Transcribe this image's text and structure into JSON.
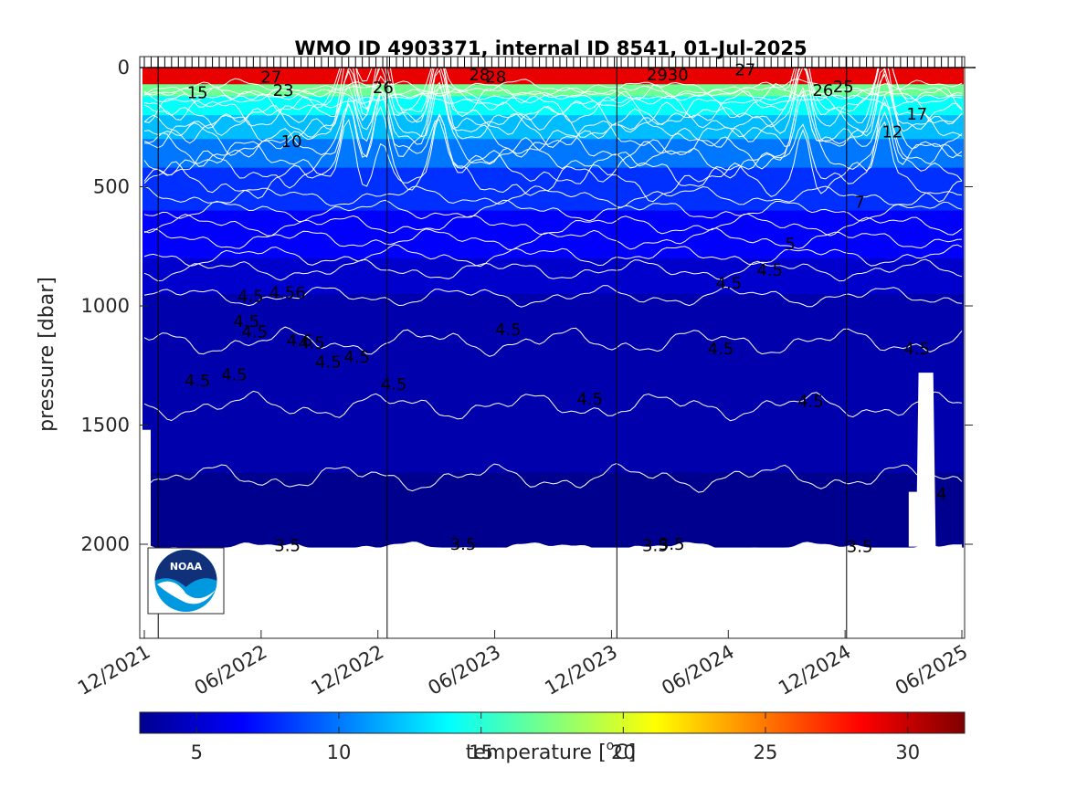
{
  "chart_data": {
    "type": "heatmap",
    "title": "WMO ID 4903371, internal ID 8541, 01-Jul-2025",
    "ylabel": "pressure [dbar]",
    "y_reversed": true,
    "ylim": [
      0,
      2400
    ],
    "y_ticks": [
      0,
      500,
      1000,
      1500,
      2000
    ],
    "x_ticks": [
      "12/2021",
      "06/2022",
      "12/2022",
      "06/2023",
      "12/2023",
      "06/2024",
      "12/2024",
      "06/2025"
    ],
    "colorbar": {
      "label_prefix": "temperature [",
      "label_unit_sup": "o",
      "label_unit": "C]",
      "range": [
        3,
        32
      ],
      "ticks": [
        5,
        10,
        15,
        20,
        25,
        30
      ],
      "colormap": "jet"
    },
    "temperature_layers": [
      {
        "top_dbar": 0,
        "bottom_dbar": 70,
        "temp": 29
      },
      {
        "top_dbar": 70,
        "bottom_dbar": 120,
        "temp": 17
      },
      {
        "top_dbar": 120,
        "bottom_dbar": 200,
        "temp": 14
      },
      {
        "top_dbar": 200,
        "bottom_dbar": 300,
        "temp": 12
      },
      {
        "top_dbar": 300,
        "bottom_dbar": 420,
        "temp": 10
      },
      {
        "top_dbar": 420,
        "bottom_dbar": 600,
        "temp": 8
      },
      {
        "top_dbar": 600,
        "bottom_dbar": 800,
        "temp": 6.5
      },
      {
        "top_dbar": 800,
        "bottom_dbar": 950,
        "temp": 5.2
      },
      {
        "top_dbar": 950,
        "bottom_dbar": 1700,
        "temp": 4.3
      },
      {
        "top_dbar": 1700,
        "bottom_dbar": 2010,
        "temp": 3.4
      }
    ],
    "contour_labels": [
      {
        "text": "27",
        "t": 0.155,
        "p": 40
      },
      {
        "text": "15",
        "t": 0.065,
        "p": 105
      },
      {
        "text": "23",
        "t": 0.17,
        "p": 95
      },
      {
        "text": "26",
        "t": 0.292,
        "p": 85
      },
      {
        "text": "28",
        "t": 0.41,
        "p": 30
      },
      {
        "text": "28",
        "t": 0.43,
        "p": 40
      },
      {
        "text": "2930",
        "t": 0.64,
        "p": 30
      },
      {
        "text": "27",
        "t": 0.735,
        "p": 10
      },
      {
        "text": "26",
        "t": 0.83,
        "p": 95
      },
      {
        "text": "25",
        "t": 0.855,
        "p": 80
      },
      {
        "text": "17",
        "t": 0.945,
        "p": 195
      },
      {
        "text": "12",
        "t": 0.915,
        "p": 270
      },
      {
        "text": "10",
        "t": 0.18,
        "p": 310
      },
      {
        "text": "7",
        "t": 0.875,
        "p": 565
      },
      {
        "text": "5",
        "t": 0.79,
        "p": 740
      },
      {
        "text": "4.5",
        "t": 0.765,
        "p": 850
      },
      {
        "text": "4.5",
        "t": 0.715,
        "p": 905
      },
      {
        "text": "4.5",
        "t": 0.13,
        "p": 960
      },
      {
        "text": "4.56",
        "t": 0.175,
        "p": 945
      },
      {
        "text": "4.5",
        "t": 0.125,
        "p": 1065
      },
      {
        "text": "4.5",
        "t": 0.135,
        "p": 1110
      },
      {
        "text": "4.6",
        "t": 0.19,
        "p": 1145
      },
      {
        "text": "4.5",
        "t": 0.205,
        "p": 1155
      },
      {
        "text": "4.5",
        "t": 0.225,
        "p": 1235
      },
      {
        "text": "4.5",
        "t": 0.26,
        "p": 1215
      },
      {
        "text": "4.5",
        "t": 0.11,
        "p": 1290
      },
      {
        "text": "4.5",
        "t": 0.065,
        "p": 1315
      },
      {
        "text": "4.5",
        "t": 0.305,
        "p": 1330
      },
      {
        "text": "4.5",
        "t": 0.445,
        "p": 1100
      },
      {
        "text": "4.5",
        "t": 0.545,
        "p": 1390
      },
      {
        "text": "4.5",
        "t": 0.705,
        "p": 1180
      },
      {
        "text": "4.5",
        "t": 0.815,
        "p": 1400
      },
      {
        "text": "4.5",
        "t": 0.945,
        "p": 1180
      },
      {
        "text": "4",
        "t": 0.975,
        "p": 1790
      },
      {
        "text": "3.5",
        "t": 0.175,
        "p": 2005
      },
      {
        "text": "3.5",
        "t": 0.39,
        "p": 2000
      },
      {
        "text": "3.5",
        "t": 0.625,
        "p": 2005
      },
      {
        "text": "3.5",
        "t": 0.645,
        "p": 2000
      },
      {
        "text": "3.5",
        "t": 0.875,
        "p": 2010
      }
    ],
    "logo": "NOAA"
  }
}
